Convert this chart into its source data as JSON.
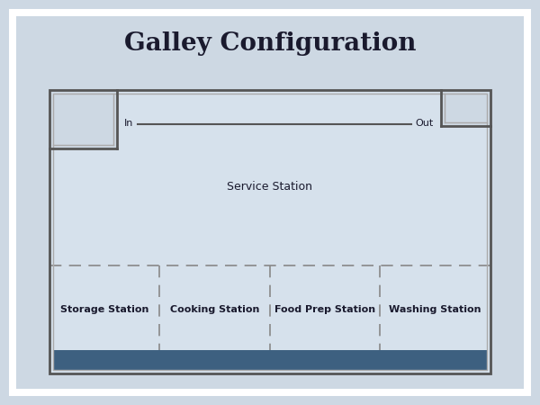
{
  "title": "Galley Configuration",
  "title_fontsize": 20,
  "title_fontweight": "bold",
  "background_color": "#cdd8e3",
  "room_bg_color": "#d6e1ec",
  "room_border_color": "#555555",
  "room_border_inner_color": "#aaaaaa",
  "counter_color": "#3d6080",
  "dashed_line_color": "#888888",
  "text_color": "#1a1a2e",
  "service_station_label": "Service Station",
  "station_labels": [
    "Storage Station",
    "Cooking Station",
    "Food Prep Station",
    "Washing Station"
  ],
  "in_label": "In",
  "out_label": "Out",
  "fig_bg_color": "#cdd8e3",
  "white_border_color": "#ffffff"
}
